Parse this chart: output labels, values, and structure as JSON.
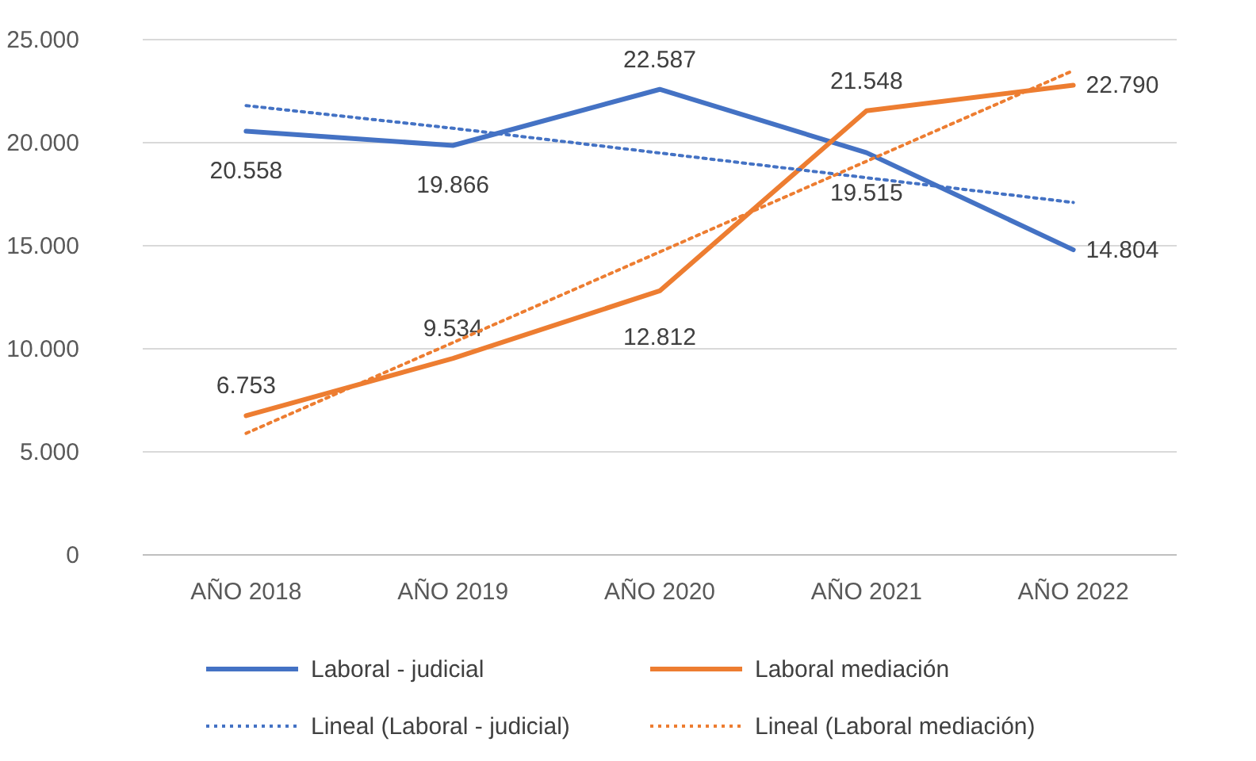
{
  "chart_data": {
    "type": "line",
    "categories": [
      "AÑO 2018",
      "AÑO 2019",
      "AÑO 2020",
      "AÑO 2021",
      "AÑO 2022"
    ],
    "ylim": [
      0,
      25000
    ],
    "yticks": [
      {
        "value": 0,
        "label": "0"
      },
      {
        "value": 5000,
        "label": "5.000"
      },
      {
        "value": 10000,
        "label": "10.000"
      },
      {
        "value": 15000,
        "label": "15.000"
      },
      {
        "value": 20000,
        "label": "20.000"
      },
      {
        "value": 25000,
        "label": "25.000"
      }
    ],
    "grid": "y",
    "legend": "bottom",
    "marker": "none",
    "series": [
      {
        "name": "Laboral - judicial",
        "color": "#4472c4",
        "line_style": "solid",
        "values": [
          20558,
          19866,
          22587,
          19515,
          14804
        ],
        "value_labels": [
          "20.558",
          "19.866",
          "22.587",
          "19.515",
          "14.804"
        ]
      },
      {
        "name": "Laboral mediación",
        "color": "#ed7d31",
        "line_style": "solid",
        "values": [
          6753,
          9534,
          12812,
          21548,
          22790
        ],
        "value_labels": [
          "6.753",
          "9.534",
          "12.812",
          "21.548",
          "22.790"
        ]
      },
      {
        "name": "Lineal (Laboral - judicial)",
        "color": "#4472c4",
        "line_style": "dotted",
        "type": "line",
        "values": [
          21800,
          20700,
          19500,
          18300,
          17100
        ]
      },
      {
        "name": "Lineal (Laboral mediación)",
        "color": "#ed7d31",
        "line_style": "dotted",
        "type": "line",
        "values": [
          5900,
          10300,
          14700,
          19100,
          23500
        ]
      }
    ]
  }
}
